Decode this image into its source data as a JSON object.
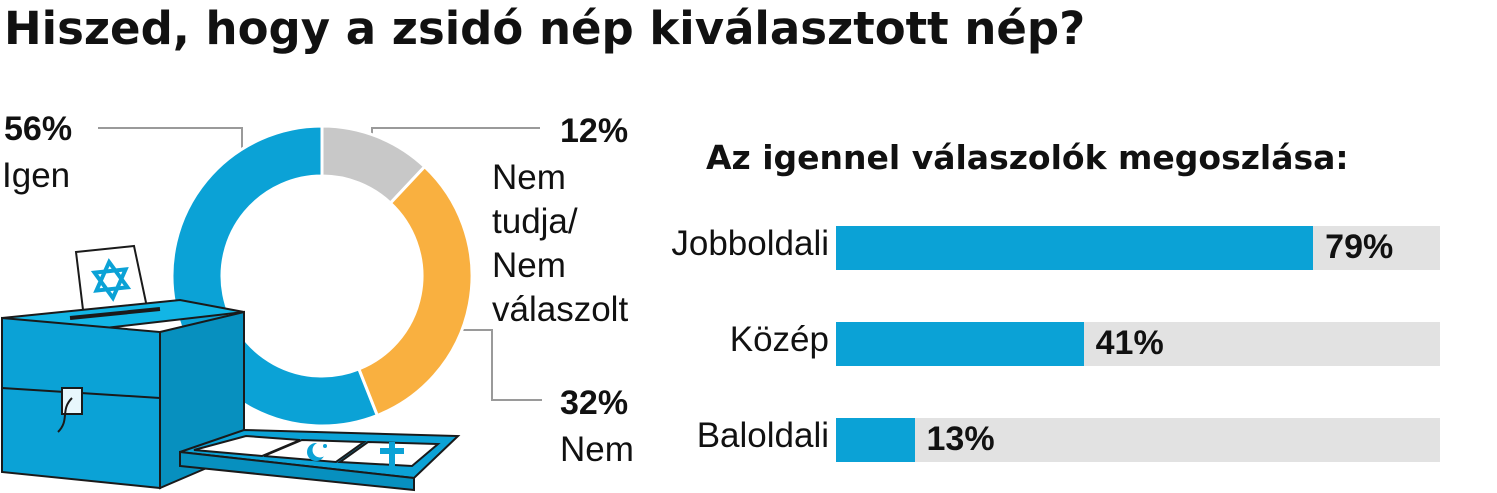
{
  "title": "Hiszed, hogy a zsidó nép kiválasztott nép?",
  "colors": {
    "igen": "#0ba2d6",
    "nem_tudja": "#c8c8c8",
    "nem": "#f9b040",
    "bar": "#0ba2d6",
    "track": "#e2e2e2",
    "leader": "#9a9a9a"
  },
  "chart_data": [
    {
      "type": "pie",
      "style": "donut",
      "title": "",
      "slices": [
        {
          "label": "Nem tudja/ Nem válaszolt",
          "value": 12,
          "display": "12%",
          "color": "#c8c8c8"
        },
        {
          "label": "Nem",
          "value": 32,
          "display": "32%",
          "color": "#f9b040"
        },
        {
          "label": "Igen",
          "value": 56,
          "display": "56%",
          "color": "#0ba2d6"
        }
      ]
    },
    {
      "type": "bar",
      "orientation": "horizontal",
      "title": "Az igennel válaszolók megoszlása:",
      "categories": [
        "Jobboldali",
        "Közép",
        "Baloldali"
      ],
      "values": [
        79,
        41,
        13
      ],
      "value_labels": [
        "79%",
        "41%",
        "13%"
      ],
      "xlim": [
        0,
        100
      ]
    }
  ],
  "donut_labels": {
    "igen": {
      "pct": "56%",
      "lines": [
        "Igen"
      ]
    },
    "nem_tudja": {
      "pct": "12%",
      "lines": [
        "Nem",
        "tudja/",
        "Nem",
        "válaszolt"
      ]
    },
    "nem": {
      "pct": "32%",
      "lines": [
        "Nem"
      ]
    }
  },
  "illustration": {
    "icons": [
      "star-of-david-icon",
      "crescent-icon",
      "cross-icon",
      "ballot-box-icon"
    ]
  }
}
